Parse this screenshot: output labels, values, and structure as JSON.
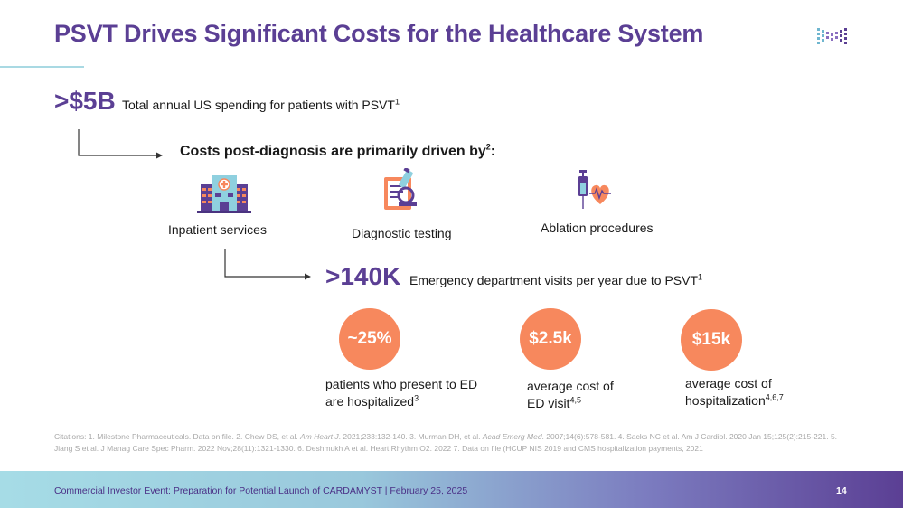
{
  "slide": {
    "title": "PSVT Drives Significant Costs for the Healthcare System"
  },
  "spending": {
    "value": ">$5B",
    "label": "Total annual US spending for patients with PSVT",
    "footnote": "1"
  },
  "costs": {
    "heading": "Costs post-diagnosis are primarily driven by",
    "heading_footnote": "2",
    "heading_suffix": ":",
    "categories": [
      {
        "label": "Inpatient services",
        "icon": "hospital-icon"
      },
      {
        "label": "Diagnostic testing",
        "icon": "microscope-report-icon"
      },
      {
        "label": "Ablation procedures",
        "icon": "syringe-heart-icon"
      }
    ]
  },
  "ed_visits": {
    "value": ">140K",
    "label": "Emergency department visits per year due to PSVT",
    "footnote": "1"
  },
  "stats": [
    {
      "value": "~25%",
      "label_line1": "patients who present to ED",
      "label_line2": "are hospitalized",
      "footnote": "3"
    },
    {
      "value": "$2.5k",
      "label_line1": "average cost of",
      "label_line2": "ED visit",
      "footnote": "4,5"
    },
    {
      "value": "$15k",
      "label_line1": "average cost of",
      "label_line2": "hospitalization",
      "footnote": "4,6,7"
    }
  ],
  "citations": {
    "lead": "Citations: 1. Milestone Pharmaceuticals. Data on file. 2. Chew DS, et al. ",
    "journal1": "Am Heart J",
    "part2": ". 2021;233:132-140. 3. Murman DH, et al. ",
    "journal2": "Acad Emerg Med",
    "part3": ". 2007;14(6):578-581.  4. Sacks NC et al. Am J Cardiol. 2020 Jan 15;125(2):215-221.  5.  Jiang S et al. J Manag Care Spec Pharm. 2022 Nov;28(11):1321-1330.  6. Deshmukh A et al. Heart Rhythm O2. 2022   7. Data on file (HCUP NIS 2019 and CMS hospitalization payments, 2021"
  },
  "footer": {
    "text": "Commercial Investor Event: Preparation for Potential Launch of CARDAMYST | February 25, 2025",
    "page": "14"
  },
  "colors": {
    "accent_purple": "#5b3f94",
    "stat_orange": "#f7885d",
    "rule_teal": "#a9d9e3"
  }
}
